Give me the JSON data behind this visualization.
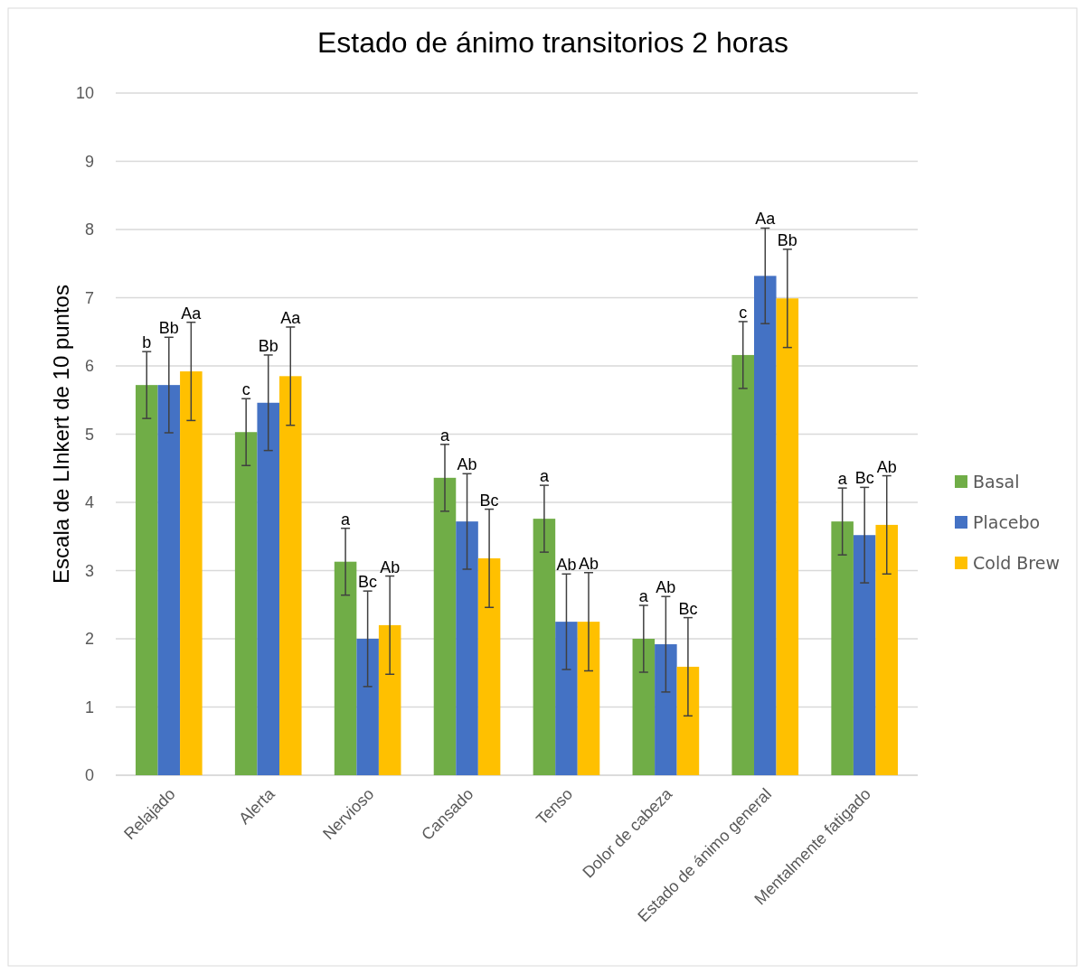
{
  "chart_data": {
    "type": "bar",
    "title": "Estado de ánimo transitorios 2 horas",
    "ylabel": "Escala de LInkert de 10 puntos",
    "categories": [
      "Relajado",
      "Alerta",
      "Nervioso",
      "Cansado",
      "Tenso",
      "Dolor de cabeza",
      "Estado de ánimo general",
      "Mentalmente fatigado"
    ],
    "series": [
      {
        "name": "Basal",
        "color": "#70ad47",
        "values": [
          5.72,
          5.03,
          3.13,
          4.36,
          3.76,
          2.0,
          6.16,
          3.72
        ],
        "errors": [
          0.49,
          0.49,
          0.49,
          0.49,
          0.49,
          0.49,
          0.49,
          0.49
        ],
        "value_labels": [
          "b",
          "c",
          "a",
          "a",
          "a",
          "a",
          "c",
          "a"
        ]
      },
      {
        "name": "Placebo",
        "color": "#4472c4",
        "values": [
          5.72,
          5.46,
          2.0,
          3.72,
          2.25,
          1.92,
          7.32,
          3.52
        ],
        "errors": [
          0.7,
          0.7,
          0.7,
          0.7,
          0.7,
          0.7,
          0.7,
          0.7
        ],
        "value_labels": [
          "Bb",
          "Bb",
          "Bc",
          "Ab",
          "Ab",
          "Ab",
          "Aa",
          "Bc"
        ]
      },
      {
        "name": "Cold Brew",
        "color": "#ffc000",
        "values": [
          5.92,
          5.85,
          2.2,
          3.18,
          2.25,
          1.59,
          6.99,
          3.67
        ],
        "errors": [
          0.72,
          0.72,
          0.72,
          0.72,
          0.72,
          0.72,
          0.72,
          0.72
        ],
        "value_labels": [
          "Aa",
          "Aa",
          "Ab",
          "Bc",
          "Ab",
          "Bc",
          "Bb",
          "Ab"
        ]
      }
    ],
    "ylim": [
      0,
      10
    ],
    "yticks": [
      0,
      1,
      2,
      3,
      4,
      5,
      6,
      7,
      8,
      9,
      10
    ],
    "grid": "y",
    "legend": "right"
  }
}
